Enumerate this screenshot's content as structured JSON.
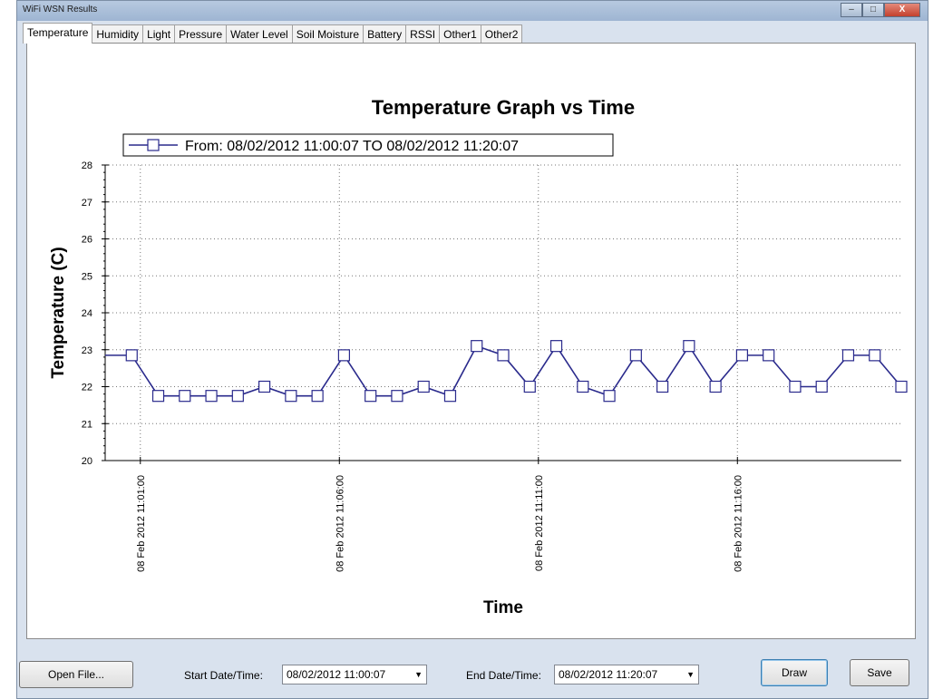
{
  "window": {
    "title": "WiFi WSN Results",
    "controls": [
      "–",
      "□",
      "X"
    ]
  },
  "tabs": [
    {
      "label": "Temperature",
      "active": true
    },
    {
      "label": "Humidity"
    },
    {
      "label": "Light"
    },
    {
      "label": "Pressure"
    },
    {
      "label": "Water Level"
    },
    {
      "label": "Soil Moisture"
    },
    {
      "label": "Battery"
    },
    {
      "label": "RSSI"
    },
    {
      "label": "Other1"
    },
    {
      "label": "Other2"
    }
  ],
  "chart_data": {
    "type": "line",
    "title": "Temperature Graph vs Time",
    "xlabel": "Time",
    "ylabel": "Temperature (C)",
    "ylim": [
      20,
      28
    ],
    "yticks": [
      20,
      21,
      22,
      23,
      24,
      25,
      26,
      27,
      28
    ],
    "xlim": [
      "08/02/2012 11:00:07",
      "08/02/2012 11:20:07"
    ],
    "xticks": [
      {
        "at": "11:01:00",
        "label": "08 Feb 2012 11:01:00"
      },
      {
        "at": "11:06:00",
        "label": "08 Feb 2012 11:06:00"
      },
      {
        "at": "11:11:00",
        "label": "08 Feb 2012 11:11:00"
      },
      {
        "at": "11:16:00",
        "label": "08 Feb 2012 11:16:00"
      }
    ],
    "grid": true,
    "legend_position": "top-left",
    "series": [
      {
        "name": "From: 08/02/2012 11:00:07 TO 08/02/2012 11:20:07",
        "color": "#2a2a8c",
        "marker": "square",
        "x": [
          "11:00:07",
          "11:00:47",
          "11:01:27",
          "11:02:07",
          "11:02:47",
          "11:03:27",
          "11:04:07",
          "11:04:47",
          "11:05:27",
          "11:06:07",
          "11:06:47",
          "11:07:27",
          "11:08:07",
          "11:08:47",
          "11:09:27",
          "11:10:07",
          "11:10:47",
          "11:11:27",
          "11:12:07",
          "11:12:47",
          "11:13:27",
          "11:14:07",
          "11:14:47",
          "11:15:27",
          "11:16:07",
          "11:16:47",
          "11:17:27",
          "11:18:07",
          "11:18:47",
          "11:19:27",
          "11:20:07"
        ],
        "y": [
          22.85,
          22.85,
          21.75,
          21.75,
          21.75,
          21.75,
          22.0,
          21.75,
          21.75,
          22.85,
          21.75,
          21.75,
          22.0,
          21.75,
          23.1,
          22.85,
          22.0,
          23.1,
          22.0,
          21.75,
          22.85,
          22.0,
          23.1,
          22.0,
          22.85,
          22.85,
          22.0,
          22.0,
          22.85,
          22.85,
          22.0
        ],
        "markers_from_index": 1
      }
    ]
  },
  "controls": {
    "open_file": "Open File...",
    "start_label": "Start Date/Time:",
    "start_value": "08/02/2012 11:00:07",
    "end_label": "End Date/Time:",
    "end_value": "08/02/2012 11:20:07",
    "draw": "Draw",
    "save": "Save"
  }
}
